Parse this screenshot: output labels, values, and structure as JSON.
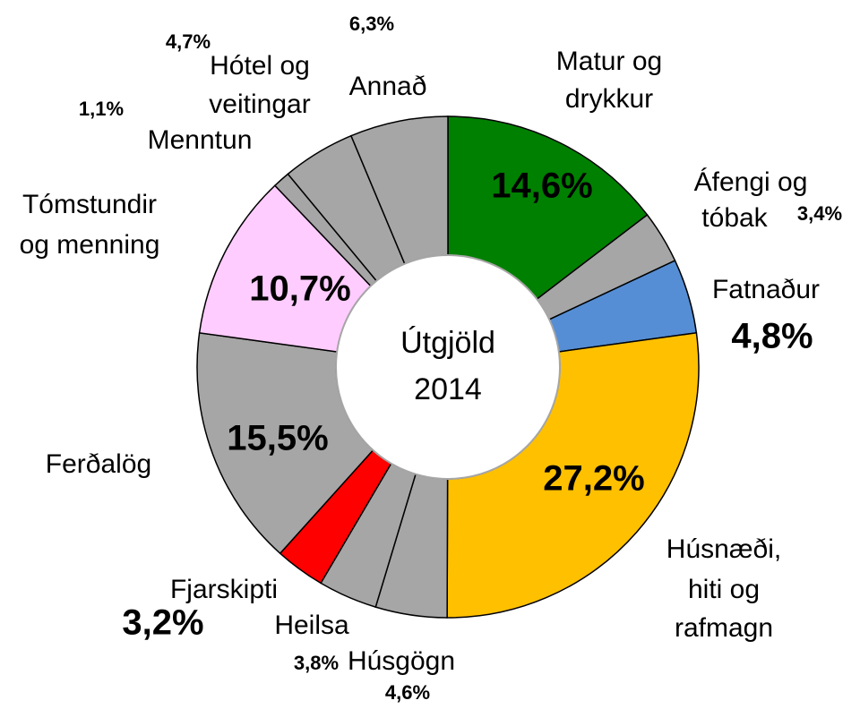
{
  "chart_data": {
    "type": "donut",
    "center_label": "Útgjöld\n2014",
    "categories": [
      "Matur og\ndrykkur",
      "Áfengi og\ntóbak",
      "Fatnaður",
      "Húsnæði,\nhiti og\nrafmagn",
      "Húsgögn",
      "Heilsa",
      "Fjarskipti",
      "Ferðalög",
      "Tómstundir\nog menning",
      "Menntun",
      "Hótel og\nveitingar",
      "Annað"
    ],
    "values": [
      14.6,
      3.4,
      4.8,
      27.2,
      4.6,
      3.8,
      3.2,
      15.5,
      10.7,
      1.1,
      4.7,
      6.3
    ],
    "value_labels": [
      "14,6%",
      "3,4%",
      "4,8%",
      "27,2%",
      "4,6%",
      "3,8%",
      "3,2%",
      "15,5%",
      "10,7%",
      "1,1%",
      "4,7%",
      "6,3%"
    ],
    "colors": [
      "#008000",
      "#a6a6a6",
      "#558ed5",
      "#ffc000",
      "#a6a6a6",
      "#a6a6a6",
      "#ff0000",
      "#a6a6a6",
      "#ffccff",
      "#a6a6a6",
      "#a6a6a6",
      "#a6a6a6"
    ]
  }
}
